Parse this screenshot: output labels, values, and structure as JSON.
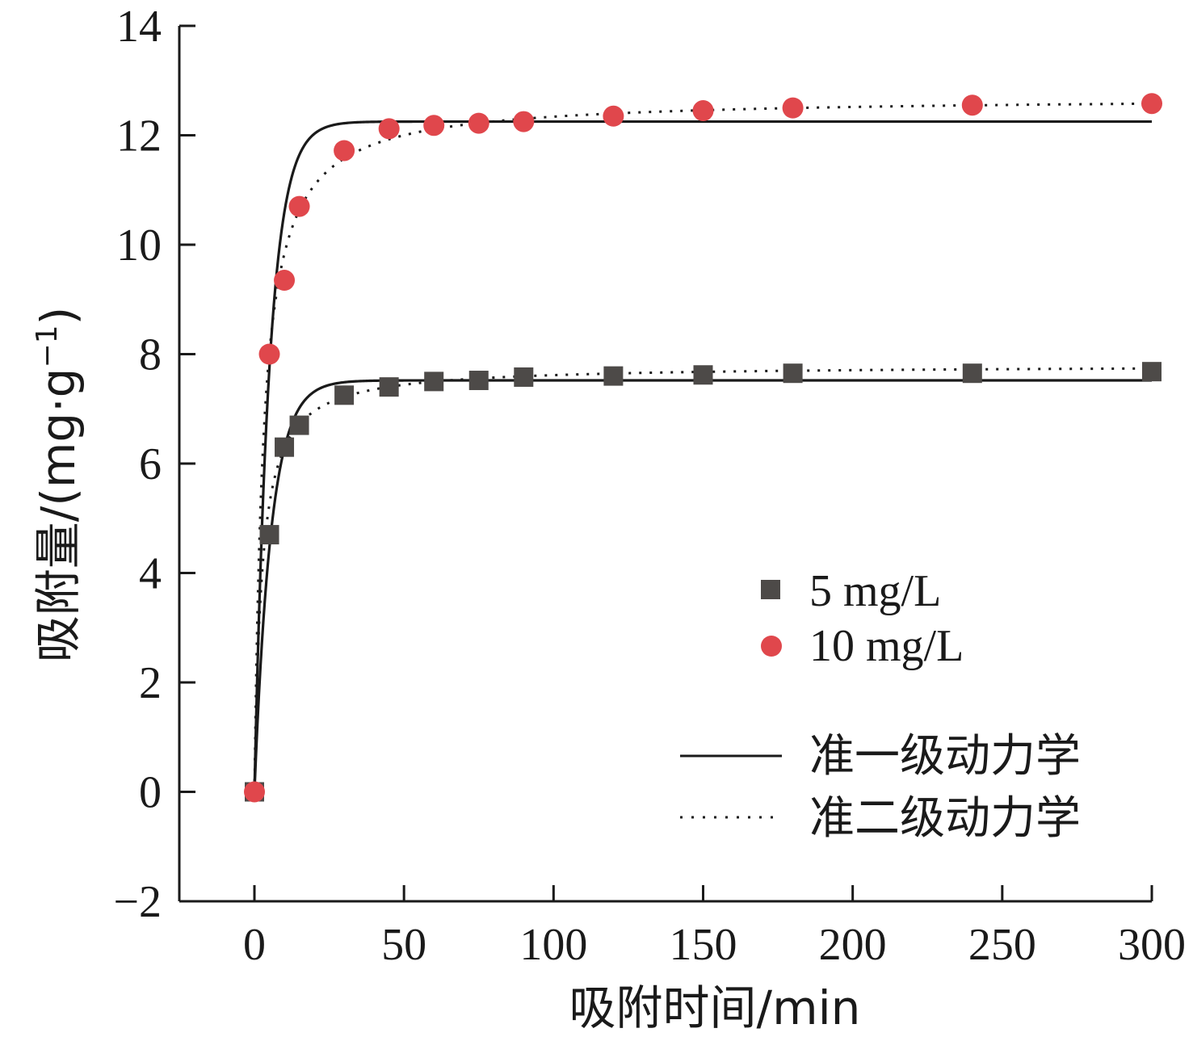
{
  "chart_data": {
    "type": "scatter",
    "xlabel": "吸附时间/min",
    "ylabel_main": "吸附量/(mg·g",
    "ylabel_sup": "−1",
    "ylabel_close": ")",
    "xlim": [
      -25,
      300
    ],
    "ylim": [
      -2,
      14
    ],
    "xticks": [
      0,
      50,
      100,
      150,
      200,
      250,
      300
    ],
    "yticks": [
      -2,
      0,
      2,
      4,
      6,
      8,
      10,
      12,
      14
    ],
    "ytick_labels": [
      "−2",
      "0",
      "2",
      "4",
      "6",
      "8",
      "10",
      "12",
      "14"
    ],
    "series": [
      {
        "name": "5 mg/L",
        "marker": "square",
        "color": "#4d4a48",
        "x": [
          0,
          5,
          10,
          15,
          30,
          45,
          60,
          75,
          90,
          120,
          150,
          180,
          240,
          300
        ],
        "y": [
          0,
          4.7,
          6.3,
          6.7,
          7.25,
          7.4,
          7.5,
          7.52,
          7.58,
          7.6,
          7.62,
          7.65,
          7.65,
          7.68
        ]
      },
      {
        "name": "10 mg/L",
        "marker": "circle",
        "color": "#e0474c",
        "x": [
          0,
          5,
          10,
          15,
          30,
          45,
          60,
          75,
          90,
          120,
          150,
          180,
          240,
          300
        ],
        "y": [
          0,
          8.0,
          9.35,
          10.7,
          11.72,
          12.12,
          12.18,
          12.22,
          12.25,
          12.35,
          12.45,
          12.5,
          12.55,
          12.58
        ]
      }
    ],
    "fits": [
      {
        "name": "准一级动力学",
        "style": "solid",
        "curves": [
          {
            "qe": 7.52,
            "k": 0.18
          },
          {
            "qe": 12.25,
            "k": 0.2
          }
        ]
      },
      {
        "name": "准二级动力学",
        "style": "dotted",
        "curves": [
          {
            "qe": 7.8,
            "k": 0.053
          },
          {
            "qe": 12.7,
            "k": 0.027
          }
        ]
      }
    ],
    "legend_placement": "center-right",
    "grid": false
  },
  "colors": {
    "axis": "#1a1a1a",
    "line": "#1a1a1a"
  }
}
